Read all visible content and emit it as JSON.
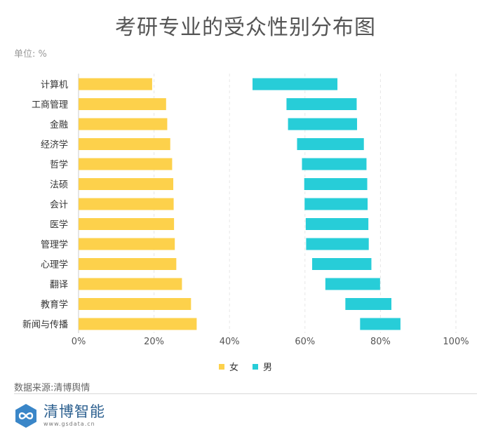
{
  "title": "考研专业的受众性别分布图",
  "unit": "单位: %",
  "source": "数据来源:清博舆情",
  "logo": {
    "name": "清博智能",
    "url": "www.gsdata.cn"
  },
  "colors": {
    "female": "#FDD14B",
    "male": "#27CDD8",
    "grid": "#e6e6e6",
    "axis": "#cccccc"
  },
  "chart_data": {
    "type": "bar",
    "orientation": "horizontal",
    "title": "考研专业的受众性别分布图",
    "xlim": [
      0,
      100
    ],
    "xticks": [
      0,
      20,
      40,
      60,
      80,
      100
    ],
    "xtick_labels": [
      "0%",
      "20%",
      "40%",
      "60%",
      "80%",
      "100%"
    ],
    "categories": [
      "计算机",
      "工商管理",
      "金融",
      "经济学",
      "哲学",
      "法硕",
      "会计",
      "医学",
      "管理学",
      "心理学",
      "翻译",
      "教育学",
      "新闻与传播"
    ],
    "series": [
      {
        "name": "女",
        "start": [
          0,
          0,
          0,
          0,
          0,
          0,
          0,
          0,
          0,
          0,
          0,
          0,
          0
        ],
        "end": [
          19.5,
          23.2,
          23.5,
          24.3,
          24.8,
          25.1,
          25.2,
          25.3,
          25.5,
          25.9,
          27.4,
          29.8,
          31.3
        ]
      },
      {
        "name": "男",
        "start": [
          46.1,
          55.1,
          55.5,
          57.9,
          59.2,
          59.8,
          59.9,
          60.2,
          60.3,
          61.9,
          65.4,
          70.7,
          74.6
        ],
        "end": [
          68.6,
          73.7,
          73.8,
          75.6,
          76.3,
          76.5,
          76.6,
          76.8,
          76.9,
          77.6,
          79.9,
          82.9,
          85.3
        ]
      }
    ],
    "legend": [
      "女",
      "男"
    ],
    "legend_position": "bottom-center"
  }
}
